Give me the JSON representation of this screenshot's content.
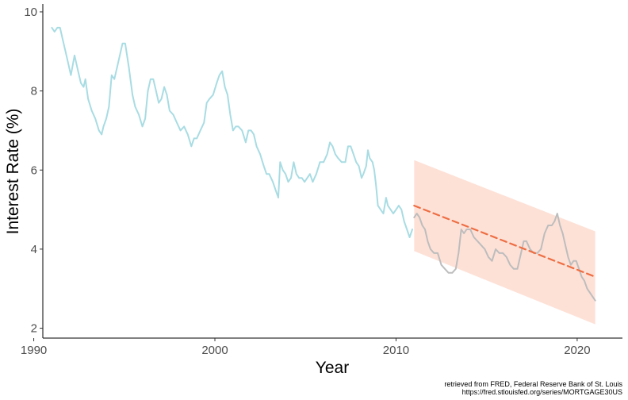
{
  "chart_data": {
    "type": "line",
    "xlabel": "Year",
    "ylabel": "Interest Rate (%)",
    "xlim": [
      1990.5,
      2022.5
    ],
    "ylim": [
      1.75,
      10.2
    ],
    "x_ticks": [
      1990,
      2000,
      2010,
      2020
    ],
    "y_ticks": [
      2,
      4,
      6,
      8,
      10
    ],
    "grid": false,
    "legend": "none",
    "caption": [
      "retrieved from FRED, Federal Reserve Bank of St. Louis",
      "https://fred.stlouisfed.org/series/MORTGAGE30US"
    ],
    "colors": {
      "training": "#a8dce3",
      "actual": "#bdbdbd",
      "forecast": "#ee6e43",
      "interval": "#fcdacd"
    },
    "series": [
      {
        "role": "training",
        "x": [
          1991.0,
          1991.15,
          1991.3,
          1991.45,
          1991.6,
          1991.75,
          1991.9,
          1992.05,
          1992.25,
          1992.45,
          1992.6,
          1992.75,
          1992.85,
          1993.0,
          1993.2,
          1993.4,
          1993.6,
          1993.75,
          1993.85,
          1994.0,
          1994.15,
          1994.3,
          1994.45,
          1994.6,
          1994.75,
          1994.9,
          1995.05,
          1995.25,
          1995.45,
          1995.6,
          1995.8,
          1996.0,
          1996.15,
          1996.3,
          1996.45,
          1996.6,
          1996.75,
          1996.9,
          1997.05,
          1997.2,
          1997.35,
          1997.5,
          1997.7,
          1997.9,
          1998.1,
          1998.3,
          1998.5,
          1998.7,
          1998.85,
          1999.0,
          1999.2,
          1999.4,
          1999.55,
          1999.7,
          1999.9,
          2000.1,
          2000.25,
          2000.4,
          2000.55,
          2000.7,
          2000.85,
          2001.0,
          2001.15,
          2001.3,
          2001.5,
          2001.7,
          2001.85,
          2002.0,
          2002.15,
          2002.3,
          2002.5,
          2002.7,
          2002.85,
          2003.0,
          2003.2,
          2003.35,
          2003.5,
          2003.6,
          2003.75,
          2003.9,
          2004.05,
          2004.2,
          2004.35,
          2004.5,
          2004.65,
          2004.8,
          2004.95,
          2005.1,
          2005.25,
          2005.4,
          2005.6,
          2005.8,
          2006.0,
          2006.2,
          2006.35,
          2006.5,
          2006.65,
          2006.8,
          2007.0,
          2007.2,
          2007.35,
          2007.5,
          2007.65,
          2007.8,
          2007.95,
          2008.1,
          2008.2,
          2008.35,
          2008.45,
          2008.55,
          2008.7,
          2008.8,
          2008.9,
          2009.0,
          2009.15,
          2009.3,
          2009.45,
          2009.55,
          2009.7,
          2009.85,
          2010.0,
          2010.15,
          2010.3,
          2010.45,
          2010.6,
          2010.75,
          2010.9
        ],
        "values": [
          9.6,
          9.5,
          9.6,
          9.6,
          9.3,
          9.0,
          8.7,
          8.4,
          8.9,
          8.5,
          8.2,
          8.1,
          8.3,
          7.8,
          7.5,
          7.3,
          7.0,
          6.9,
          7.1,
          7.3,
          7.6,
          8.4,
          8.3,
          8.6,
          8.9,
          9.2,
          9.2,
          8.6,
          7.9,
          7.6,
          7.4,
          7.1,
          7.3,
          8.0,
          8.3,
          8.3,
          8.0,
          7.7,
          7.8,
          8.1,
          7.9,
          7.5,
          7.4,
          7.2,
          7.0,
          7.1,
          6.9,
          6.6,
          6.8,
          6.8,
          7.0,
          7.2,
          7.7,
          7.8,
          7.9,
          8.2,
          8.4,
          8.5,
          8.1,
          7.9,
          7.4,
          7.0,
          7.1,
          7.1,
          7.0,
          6.7,
          7.0,
          7.0,
          6.9,
          6.6,
          6.4,
          6.1,
          5.9,
          5.9,
          5.7,
          5.5,
          5.3,
          6.2,
          6.0,
          5.9,
          5.7,
          5.8,
          6.2,
          5.9,
          5.8,
          5.8,
          5.7,
          5.8,
          5.9,
          5.7,
          5.9,
          6.2,
          6.2,
          6.4,
          6.7,
          6.6,
          6.4,
          6.3,
          6.2,
          6.2,
          6.6,
          6.6,
          6.4,
          6.2,
          6.1,
          5.8,
          5.9,
          6.1,
          6.5,
          6.3,
          6.2,
          6.0,
          5.6,
          5.1,
          5.0,
          4.9,
          5.3,
          5.1,
          5.0,
          4.9,
          5.0,
          5.1,
          5.0,
          4.7,
          4.5,
          4.3,
          4.5
        ]
      },
      {
        "role": "actual",
        "x": [
          2011.0,
          2011.15,
          2011.3,
          2011.45,
          2011.6,
          2011.75,
          2011.9,
          2012.1,
          2012.3,
          2012.5,
          2012.7,
          2012.9,
          2013.1,
          2013.3,
          2013.45,
          2013.6,
          2013.75,
          2013.9,
          2014.1,
          2014.3,
          2014.5,
          2014.7,
          2014.9,
          2015.1,
          2015.3,
          2015.5,
          2015.7,
          2015.9,
          2016.1,
          2016.3,
          2016.5,
          2016.7,
          2016.9,
          2017.05,
          2017.2,
          2017.4,
          2017.6,
          2017.8,
          2018.0,
          2018.2,
          2018.4,
          2018.6,
          2018.75,
          2018.9,
          2019.05,
          2019.2,
          2019.35,
          2019.5,
          2019.65,
          2019.8,
          2019.95,
          2020.1,
          2020.25,
          2020.4,
          2020.55,
          2020.7,
          2020.85,
          2021.0
        ],
        "values": [
          4.8,
          4.9,
          4.8,
          4.6,
          4.5,
          4.2,
          4.0,
          3.9,
          3.9,
          3.6,
          3.5,
          3.4,
          3.4,
          3.5,
          3.9,
          4.5,
          4.4,
          4.5,
          4.5,
          4.3,
          4.2,
          4.1,
          4.0,
          3.8,
          3.7,
          4.0,
          3.9,
          3.9,
          3.8,
          3.6,
          3.5,
          3.5,
          3.9,
          4.2,
          4.2,
          4.0,
          3.9,
          3.9,
          4.0,
          4.4,
          4.6,
          4.6,
          4.7,
          4.9,
          4.6,
          4.4,
          4.1,
          3.8,
          3.6,
          3.7,
          3.7,
          3.5,
          3.3,
          3.2,
          3.0,
          2.9,
          2.8,
          2.7
        ]
      },
      {
        "role": "forecast",
        "x": [
          2011.0,
          2021.0
        ],
        "values": [
          5.1,
          3.3
        ]
      }
    ],
    "interval": {
      "x": [
        2011.0,
        2021.0
      ],
      "upper": [
        6.25,
        4.45
      ],
      "lower": [
        3.95,
        2.1
      ]
    }
  }
}
